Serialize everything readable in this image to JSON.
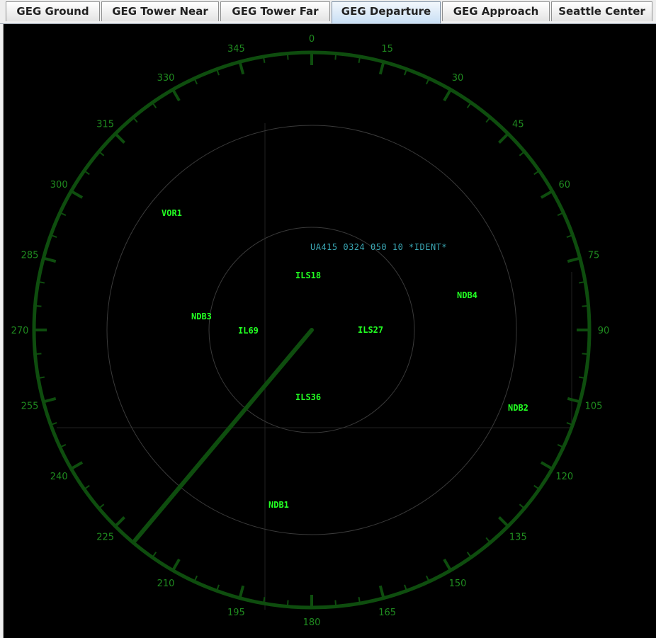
{
  "tabs": [
    {
      "label": "GEG Ground",
      "active": false
    },
    {
      "label": "GEG Tower Near",
      "active": false
    },
    {
      "label": "GEG Tower Far",
      "active": false
    },
    {
      "label": "GEG Departure",
      "active": true
    },
    {
      "label": "GEG Approach",
      "active": false
    },
    {
      "label": "Seattle Center",
      "active": false
    }
  ],
  "scope": {
    "azimuth_labels": [
      "0",
      "15",
      "30",
      "45",
      "60",
      "75",
      "90",
      "105",
      "120",
      "135",
      "150",
      "165",
      "180",
      "195",
      "210",
      "225",
      "240",
      "255",
      "270",
      "285",
      "300",
      "315",
      "330",
      "345"
    ],
    "fixes": {
      "vor1": "VOR1",
      "ils18": "ILS18",
      "ndb4": "NDB4",
      "ndb3": "NDB3",
      "il9": "IL69",
      "ils27": "ILS27",
      "ils36": "ILS36",
      "ndb2": "NDB2",
      "ndb1": "NDB1"
    },
    "data_block": "UA415 0324 050 10 *IDENT*",
    "sweep_bearing_deg": 220,
    "colors": {
      "background": "#000000",
      "ring": "#0e4d0e",
      "azimuth_text": "#1f8a1f",
      "fix_text": "#22ff22",
      "data_block": "#3aa7b4",
      "sweep": "#0e4d0e"
    }
  }
}
